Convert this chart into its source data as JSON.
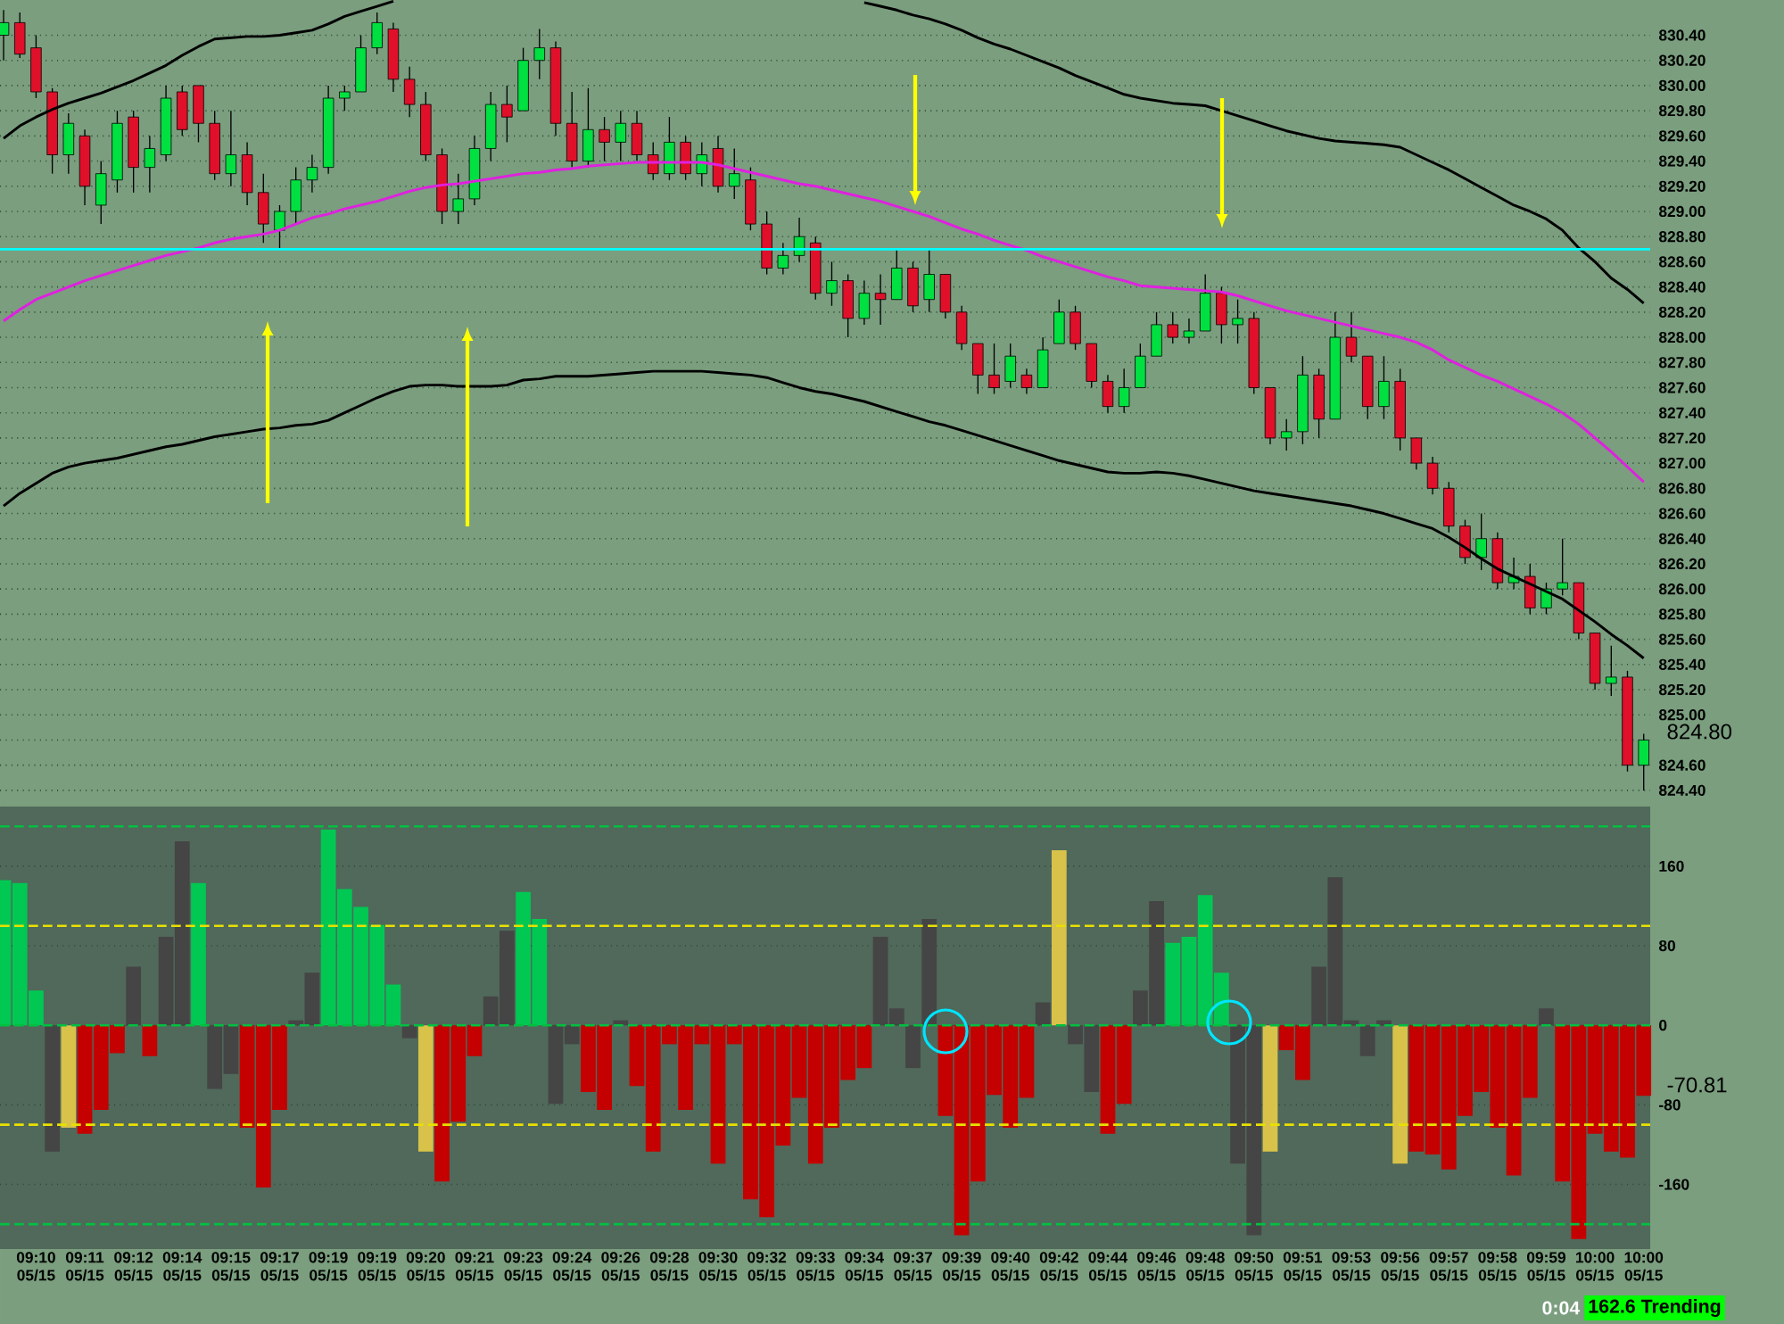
{
  "chart_data": [
    {
      "type": "candlestick",
      "categories": [
        null,
        null,
        null,
        null,
        null,
        null,
        null,
        null,
        null,
        null,
        null,
        null,
        null,
        null,
        null,
        null,
        null,
        null,
        null,
        null,
        null,
        null,
        null,
        null,
        null,
        null,
        null,
        null,
        null,
        null,
        null,
        null,
        null,
        null,
        null,
        null,
        null,
        null,
        null,
        null,
        null,
        null,
        null,
        null,
        null,
        null,
        null,
        null,
        null,
        null,
        null,
        null,
        null,
        null,
        null,
        null,
        null,
        null,
        null,
        null,
        null,
        null,
        null,
        null,
        null,
        null,
        null,
        null,
        null,
        null,
        null,
        null,
        null,
        null,
        null,
        null,
        null,
        null,
        null,
        null,
        null,
        null,
        null,
        null,
        null,
        null,
        null,
        null,
        null,
        null,
        null,
        null,
        null,
        null,
        null,
        null,
        null,
        null,
        null,
        null,
        null,
        null
      ],
      "ohlc": [
        [
          830.4,
          830.6,
          830.2,
          830.5
        ],
        [
          830.5,
          830.58,
          830.22,
          830.25
        ],
        [
          830.3,
          830.4,
          829.9,
          829.95
        ],
        [
          829.95,
          829.98,
          829.3,
          829.45
        ],
        [
          829.45,
          829.78,
          829.3,
          829.7
        ],
        [
          829.6,
          829.65,
          829.05,
          829.2
        ],
        [
          829.05,
          829.4,
          828.9,
          829.3
        ],
        [
          829.25,
          829.8,
          829.15,
          829.7
        ],
        [
          829.75,
          829.8,
          829.15,
          829.35
        ],
        [
          829.35,
          829.6,
          829.15,
          829.5
        ],
        [
          829.45,
          830.0,
          829.4,
          829.9
        ],
        [
          829.95,
          830.0,
          829.6,
          829.65
        ],
        [
          830.0,
          830.0,
          829.55,
          829.7
        ],
        [
          829.7,
          829.8,
          829.25,
          829.3
        ],
        [
          829.3,
          829.8,
          829.2,
          829.45
        ],
        [
          829.45,
          829.55,
          829.05,
          829.15
        ],
        [
          829.15,
          829.3,
          828.75,
          828.9
        ],
        [
          828.85,
          829.05,
          828.7,
          829.0
        ],
        [
          829.0,
          829.35,
          828.9,
          829.25
        ],
        [
          829.25,
          829.45,
          829.15,
          829.35
        ],
        [
          829.35,
          830.0,
          829.3,
          829.9
        ],
        [
          829.9,
          830.0,
          829.8,
          829.95
        ],
        [
          829.95,
          830.4,
          829.95,
          830.3
        ],
        [
          830.3,
          830.58,
          830.25,
          830.5
        ],
        [
          830.45,
          830.5,
          829.95,
          830.05
        ],
        [
          830.05,
          830.15,
          829.75,
          829.85
        ],
        [
          829.85,
          829.95,
          829.4,
          829.45
        ],
        [
          829.45,
          829.5,
          828.9,
          829.0
        ],
        [
          829.0,
          829.3,
          828.9,
          829.1
        ],
        [
          829.1,
          829.6,
          829.05,
          829.5
        ],
        [
          829.5,
          829.95,
          829.4,
          829.85
        ],
        [
          829.85,
          830.0,
          829.55,
          829.75
        ],
        [
          829.8,
          830.3,
          829.8,
          830.2
        ],
        [
          830.2,
          830.45,
          830.05,
          830.3
        ],
        [
          830.3,
          830.35,
          829.6,
          829.7
        ],
        [
          829.7,
          829.95,
          829.35,
          829.4
        ],
        [
          829.4,
          829.98,
          829.35,
          829.65
        ],
        [
          829.65,
          829.75,
          829.4,
          829.55
        ],
        [
          829.55,
          829.8,
          829.4,
          829.7
        ],
        [
          829.7,
          829.8,
          829.4,
          829.45
        ],
        [
          829.45,
          829.55,
          829.25,
          829.3
        ],
        [
          829.3,
          829.75,
          829.25,
          829.55
        ],
        [
          829.55,
          829.6,
          829.25,
          829.3
        ],
        [
          829.3,
          829.55,
          829.2,
          829.45
        ],
        [
          829.5,
          829.6,
          829.15,
          829.2
        ],
        [
          829.2,
          829.5,
          829.1,
          829.3
        ],
        [
          829.25,
          829.35,
          828.85,
          828.9
        ],
        [
          828.9,
          829.0,
          828.5,
          828.55
        ],
        [
          828.55,
          828.75,
          828.5,
          828.65
        ],
        [
          828.65,
          828.95,
          828.6,
          828.8
        ],
        [
          828.75,
          828.8,
          828.3,
          828.35
        ],
        [
          828.35,
          828.6,
          828.25,
          828.45
        ],
        [
          828.45,
          828.5,
          828.0,
          828.15
        ],
        [
          828.15,
          828.45,
          828.1,
          828.35
        ],
        [
          828.35,
          828.5,
          828.1,
          828.3
        ],
        [
          828.3,
          828.7,
          828.3,
          828.55
        ],
        [
          828.55,
          828.6,
          828.2,
          828.25
        ],
        [
          828.3,
          828.7,
          828.2,
          828.5
        ],
        [
          828.5,
          828.5,
          828.15,
          828.2
        ],
        [
          828.2,
          828.25,
          827.9,
          827.95
        ],
        [
          827.95,
          827.95,
          827.55,
          827.7
        ],
        [
          827.7,
          827.95,
          827.55,
          827.6
        ],
        [
          827.65,
          827.95,
          827.6,
          827.85
        ],
        [
          827.7,
          827.75,
          827.55,
          827.6
        ],
        [
          827.6,
          828.0,
          827.6,
          827.9
        ],
        [
          827.95,
          828.3,
          827.95,
          828.2
        ],
        [
          828.2,
          828.25,
          827.9,
          827.95
        ],
        [
          827.95,
          827.95,
          827.6,
          827.65
        ],
        [
          827.65,
          827.7,
          827.4,
          827.45
        ],
        [
          827.45,
          827.75,
          827.4,
          827.6
        ],
        [
          827.6,
          827.95,
          827.6,
          827.85
        ],
        [
          827.85,
          828.2,
          827.85,
          828.1
        ],
        [
          828.1,
          828.2,
          827.95,
          828.0
        ],
        [
          828.0,
          828.15,
          827.95,
          828.05
        ],
        [
          828.05,
          828.5,
          828.05,
          828.35
        ],
        [
          828.35,
          828.4,
          827.95,
          828.1
        ],
        [
          828.1,
          828.3,
          827.95,
          828.15
        ],
        [
          828.15,
          828.2,
          827.55,
          827.6
        ],
        [
          827.6,
          827.6,
          827.15,
          827.2
        ],
        [
          827.2,
          827.35,
          827.1,
          827.25
        ],
        [
          827.25,
          827.85,
          827.15,
          827.7
        ],
        [
          827.7,
          827.75,
          827.2,
          827.35
        ],
        [
          827.35,
          828.2,
          827.35,
          828.0
        ],
        [
          828.0,
          828.2,
          827.8,
          827.85
        ],
        [
          827.85,
          827.85,
          827.35,
          827.45
        ],
        [
          827.45,
          827.85,
          827.35,
          827.65
        ],
        [
          827.65,
          827.75,
          827.1,
          827.2
        ],
        [
          827.2,
          827.2,
          826.95,
          827.0
        ],
        [
          827.0,
          827.05,
          826.75,
          826.8
        ],
        [
          826.8,
          826.85,
          826.45,
          826.5
        ],
        [
          826.5,
          826.55,
          826.2,
          826.25
        ],
        [
          826.25,
          826.6,
          826.15,
          826.4
        ],
        [
          826.4,
          826.45,
          826.0,
          826.05
        ],
        [
          826.05,
          826.25,
          826.0,
          826.1
        ],
        [
          826.1,
          826.2,
          825.8,
          825.85
        ],
        [
          825.85,
          826.05,
          825.8,
          826.0
        ],
        [
          826.0,
          826.4,
          825.95,
          826.05
        ],
        [
          826.05,
          826.05,
          825.6,
          825.65
        ],
        [
          825.65,
          825.65,
          825.2,
          825.25
        ],
        [
          825.25,
          825.55,
          825.15,
          825.3
        ],
        [
          825.3,
          825.35,
          824.55,
          824.6
        ],
        [
          824.6,
          824.85,
          824.4,
          824.8
        ]
      ],
      "colors": [
        "#00e040",
        "#e0102a",
        "#e0102a",
        "#e0102a",
        "#00e040",
        "#e0102a",
        "#00e040",
        "#00e040",
        "#e0102a",
        "#00e040",
        "#00e040",
        "#e0102a",
        "#e0102a",
        "#e0102a",
        "#00e040",
        "#e0102a",
        "#e0102a",
        "#00e040",
        "#00e040",
        "#00e040",
        "#00e040",
        "#00e040",
        "#00e040",
        "#00e040",
        "#e0102a",
        "#e0102a",
        "#e0102a",
        "#e0102a",
        "#00e040",
        "#00e040",
        "#00e040",
        "#e0102a",
        "#00e040",
        "#00e040",
        "#e0102a",
        "#e0102a",
        "#00e040",
        "#e0102a",
        "#00e040",
        "#e0102a",
        "#e0102a",
        "#00e040",
        "#e0102a",
        "#00e040",
        "#e0102a",
        "#00e040",
        "#e0102a",
        "#e0102a",
        "#00e040",
        "#00e040",
        "#e0102a",
        "#00e040",
        "#e0102a",
        "#00e040",
        "#e0102a",
        "#00e040",
        "#e0102a",
        "#00e040",
        "#e0102a",
        "#e0102a",
        "#e0102a",
        "#e0102a",
        "#00e040",
        "#e0102a",
        "#00e040",
        "#00e040",
        "#e0102a",
        "#e0102a",
        "#e0102a",
        "#00e040",
        "#00e040",
        "#00e040",
        "#e0102a",
        "#00e040",
        "#00e040",
        "#e0102a",
        "#00e040",
        "#e0102a",
        "#e0102a",
        "#00e040",
        "#00e040",
        "#e0102a",
        "#00e040",
        "#e0102a",
        "#e0102a",
        "#00e040",
        "#e0102a",
        "#e0102a",
        "#e0102a",
        "#e0102a",
        "#e0102a",
        "#00e040",
        "#e0102a",
        "#00e040",
        "#e0102a",
        "#00e040",
        "#00e040",
        "#e0102a",
        "#e0102a",
        "#00e040",
        "#e0102a",
        "#00e040"
      ],
      "series": [
        {
          "type": "line",
          "color": "#000000",
          "values": [
            829.58,
            829.68,
            829.75,
            829.81,
            829.86,
            829.9,
            829.94,
            829.99,
            830.04,
            830.1,
            830.16,
            830.24,
            830.31,
            830.37,
            830.38,
            830.39,
            830.39,
            830.4,
            830.42,
            830.44,
            830.49,
            830.55,
            830.59,
            830.63,
            830.67,
            null,
            null,
            null,
            null,
            null,
            null,
            null,
            null,
            null,
            null,
            null,
            null,
            null,
            null,
            null,
            null,
            null,
            null,
            null,
            null,
            null,
            null,
            null,
            null,
            null,
            null,
            null,
            null,
            830.66,
            830.63,
            830.6,
            830.56,
            830.53,
            830.49,
            830.44,
            830.38,
            830.33,
            830.29,
            830.24,
            830.19,
            830.14,
            830.08,
            830.03,
            829.98,
            829.93,
            829.9,
            829.88,
            829.86,
            829.85,
            829.84,
            829.8,
            829.76,
            829.72,
            829.68,
            829.64,
            829.61,
            829.58,
            829.56,
            829.55,
            829.54,
            829.53,
            829.51,
            829.45,
            829.39,
            829.33,
            829.26,
            829.19,
            829.12,
            829.05,
            829.0,
            828.94,
            828.85,
            828.71,
            828.6,
            828.47,
            828.38,
            828.27
          ]
        },
        {
          "type": "line",
          "color": "#e020e0",
          "values": [
            828.13,
            828.22,
            828.3,
            828.35,
            828.4,
            828.45,
            828.49,
            828.53,
            828.57,
            828.61,
            828.65,
            828.68,
            828.71,
            828.75,
            828.78,
            828.8,
            828.82,
            828.85,
            828.9,
            828.95,
            828.98,
            829.02,
            829.05,
            829.08,
            829.12,
            829.16,
            829.19,
            829.21,
            829.22,
            829.24,
            829.26,
            829.28,
            829.3,
            829.31,
            829.33,
            829.34,
            829.36,
            829.37,
            829.38,
            829.39,
            829.39,
            829.39,
            829.39,
            829.39,
            829.37,
            829.34,
            829.31,
            829.28,
            829.25,
            829.22,
            829.2,
            829.17,
            829.14,
            829.11,
            829.08,
            829.04,
            829.0,
            828.96,
            828.91,
            828.86,
            828.82,
            828.77,
            828.73,
            828.69,
            828.64,
            828.6,
            828.56,
            828.52,
            828.48,
            828.45,
            828.41,
            828.4,
            828.39,
            828.38,
            828.37,
            828.36,
            828.33,
            828.29,
            828.25,
            828.21,
            828.18,
            828.15,
            828.12,
            828.09,
            828.06,
            828.03,
            828.0,
            827.96,
            827.9,
            827.82,
            827.76,
            827.7,
            827.65,
            827.59,
            827.53,
            827.47,
            827.4,
            827.31,
            827.2,
            827.09,
            826.97,
            826.85
          ]
        },
        {
          "type": "line",
          "color": "#000000",
          "values": [
            826.66,
            826.76,
            826.84,
            826.92,
            826.97,
            827.0,
            827.02,
            827.04,
            827.07,
            827.1,
            827.13,
            827.15,
            827.18,
            827.21,
            827.23,
            827.25,
            827.27,
            827.28,
            827.3,
            827.31,
            827.34,
            827.4,
            827.46,
            827.52,
            827.57,
            827.61,
            827.62,
            827.62,
            827.61,
            827.61,
            827.61,
            827.62,
            827.66,
            827.67,
            827.69,
            827.69,
            827.69,
            827.7,
            827.71,
            827.72,
            827.73,
            827.73,
            827.73,
            827.73,
            827.72,
            827.71,
            827.7,
            827.68,
            827.64,
            827.6,
            827.57,
            827.55,
            827.52,
            827.49,
            827.45,
            827.41,
            827.37,
            827.33,
            827.3,
            827.26,
            827.22,
            827.18,
            827.14,
            827.1,
            827.06,
            827.02,
            826.99,
            826.96,
            826.93,
            826.92,
            826.92,
            826.93,
            826.92,
            826.9,
            826.87,
            826.84,
            826.81,
            826.78,
            826.76,
            826.74,
            826.72,
            826.7,
            826.68,
            826.66,
            826.63,
            826.6,
            826.56,
            826.52,
            826.48,
            826.41,
            826.33,
            826.24,
            826.16,
            826.1,
            826.04,
            825.98,
            825.92,
            825.83,
            825.74,
            825.64,
            825.55,
            825.45
          ]
        }
      ],
      "ylim": [
        824.3,
        830.68
      ],
      "yticks": [
        {
          "value": 824.4,
          "label": "824.40"
        },
        {
          "value": 824.6,
          "label": "824.60"
        },
        {
          "value": 824.8,
          "label": null
        },
        {
          "value": 825.0,
          "label": "825.00"
        },
        {
          "value": 825.2,
          "label": "825.20"
        },
        {
          "value": 825.4,
          "label": "825.40"
        },
        {
          "value": 825.6,
          "label": "825.60"
        },
        {
          "value": 825.8,
          "label": "825.80"
        },
        {
          "value": 826.0,
          "label": "826.00"
        },
        {
          "value": 826.2,
          "label": "826.20"
        },
        {
          "value": 826.4,
          "label": "826.40"
        },
        {
          "value": 826.6,
          "label": "826.60"
        },
        {
          "value": 826.8,
          "label": "826.80"
        },
        {
          "value": 827.0,
          "label": "827.00"
        },
        {
          "value": 827.2,
          "label": "827.20"
        },
        {
          "value": 827.4,
          "label": "827.40"
        },
        {
          "value": 827.6,
          "label": "827.60"
        },
        {
          "value": 827.8,
          "label": "827.80"
        },
        {
          "value": 828.0,
          "label": "828.00"
        },
        {
          "value": 828.2,
          "label": "828.20"
        },
        {
          "value": 828.4,
          "label": "828.40"
        },
        {
          "value": 828.6,
          "label": "828.60"
        },
        {
          "value": 828.8,
          "label": "828.80"
        },
        {
          "value": 829.0,
          "label": "829.00"
        },
        {
          "value": 829.2,
          "label": "829.20"
        },
        {
          "value": 829.4,
          "label": "829.40"
        },
        {
          "value": 829.6,
          "label": "829.60"
        },
        {
          "value": 829.8,
          "label": "829.80"
        },
        {
          "value": 830.0,
          "label": "830.00"
        },
        {
          "value": 830.2,
          "label": "830.20"
        },
        {
          "value": 830.4,
          "label": "830.40"
        }
      ],
      "ref_lines": [
        {
          "axis": "y",
          "value": 828.7,
          "color": "#00ffff",
          "line_style": "solid"
        }
      ],
      "annotations": [
        "824.80"
      ],
      "grid": "y",
      "tick_labels": "y"
    },
    {
      "type": "bar",
      "categories": [
        null,
        null,
        "09:10 05/15",
        null,
        null,
        "09:11 05/15",
        null,
        null,
        "09:12 05/15",
        null,
        null,
        "09:14 05/15",
        null,
        null,
        "09:15 05/15",
        null,
        null,
        "09:17 05/15",
        null,
        null,
        "09:19 05/15",
        null,
        null,
        "09:19 05/15",
        null,
        null,
        "09:20 05/15",
        null,
        null,
        "09:21 05/15",
        null,
        null,
        "09:23 05/15",
        null,
        null,
        "09:24 05/15",
        null,
        null,
        "09:26 05/15",
        null,
        null,
        "09:28 05/15",
        null,
        null,
        "09:30 05/15",
        null,
        null,
        "09:32 05/15",
        null,
        null,
        "09:33 05/15",
        null,
        null,
        "09:34 05/15",
        null,
        null,
        "09:37 05/15",
        null,
        null,
        "09:39 05/15",
        null,
        null,
        "09:40 05/15",
        null,
        null,
        "09:42 05/15",
        null,
        null,
        "09:44 05/15",
        null,
        null,
        "09:46 05/15",
        null,
        null,
        "09:48 05/15",
        null,
        null,
        "09:50 05/15",
        null,
        null,
        "09:51 05/15",
        null,
        null,
        "09:53 05/15",
        null,
        null,
        "09:56 05/15",
        null,
        null,
        "09:57 05/15",
        null,
        null,
        "09:58 05/15",
        null,
        null,
        "09:59 05/15",
        null,
        null,
        "10:00 05/15",
        null,
        null,
        "10:00 05/15"
      ],
      "values": [
        146,
        143,
        35,
        -127,
        -103,
        -109,
        -85,
        -28,
        59,
        -31,
        89,
        185,
        143,
        -64,
        -49,
        -103,
        -163,
        -85,
        5,
        53,
        197,
        137,
        119,
        101,
        41,
        -13,
        -127,
        -157,
        -97,
        -31,
        29,
        95,
        134,
        107,
        -79,
        -19,
        -67,
        -85,
        5,
        -61,
        -127,
        -19,
        -85,
        -19,
        -139,
        -19,
        -175,
        -193,
        -121,
        -73,
        -139,
        -103,
        -55,
        -43,
        89,
        17,
        -43,
        107,
        -91,
        -211,
        -157,
        -70,
        -103,
        -73,
        23,
        176,
        -19,
        -67,
        -109,
        -79,
        35,
        125,
        83,
        89,
        131,
        53,
        -139,
        -211,
        -127,
        -25,
        -55,
        59,
        149,
        5,
        -31,
        5,
        -139,
        -127,
        -130,
        -145,
        -91,
        -67,
        -103,
        -151,
        -73,
        17,
        -157,
        -215,
        -109,
        -127,
        -133,
        -71
      ],
      "colors": [
        "#00c853",
        "#00c853",
        "#00c853",
        "#454545",
        "#d8c24a",
        "#c40000",
        "#c40000",
        "#c40000",
        "#454545",
        "#c40000",
        "#454545",
        "#454545",
        "#00c853",
        "#454545",
        "#454545",
        "#c40000",
        "#c40000",
        "#c40000",
        "#454545",
        "#454545",
        "#00c853",
        "#00c853",
        "#00c853",
        "#00c853",
        "#00c853",
        "#454545",
        "#d8c24a",
        "#c40000",
        "#c40000",
        "#c40000",
        "#454545",
        "#454545",
        "#00c853",
        "#00c853",
        "#454545",
        "#454545",
        "#c40000",
        "#c40000",
        "#454545",
        "#c40000",
        "#c40000",
        "#c40000",
        "#c40000",
        "#c40000",
        "#c40000",
        "#c40000",
        "#c40000",
        "#c40000",
        "#c40000",
        "#c40000",
        "#c40000",
        "#c40000",
        "#c40000",
        "#c40000",
        "#454545",
        "#454545",
        "#454545",
        "#454545",
        "#c40000",
        "#c40000",
        "#c40000",
        "#c40000",
        "#c40000",
        "#c40000",
        "#454545",
        "#d8c24a",
        "#454545",
        "#454545",
        "#c40000",
        "#c40000",
        "#454545",
        "#454545",
        "#00c853",
        "#00c853",
        "#00c853",
        "#00c853",
        "#454545",
        "#454545",
        "#d8c24a",
        "#c40000",
        "#c40000",
        "#454545",
        "#454545",
        "#454545",
        "#454545",
        "#454545",
        "#d8c24a",
        "#c40000",
        "#c40000",
        "#c40000",
        "#c40000",
        "#c40000",
        "#c40000",
        "#c40000",
        "#c40000",
        "#454545",
        "#c40000",
        "#c40000",
        "#c40000",
        "#c40000",
        "#c40000",
        "#c40000"
      ],
      "ylim": [
        -225,
        220
      ],
      "yticks": [
        160,
        80,
        0,
        -80,
        -160
      ],
      "ref_lines": [
        {
          "axis": "y",
          "value": 200,
          "color": "#00c040",
          "line_style": "dashed"
        },
        {
          "axis": "y",
          "value": 100,
          "color": "#e8e000",
          "line_style": "dashed"
        },
        {
          "axis": "y",
          "value": 0,
          "color": "#00c040",
          "line_style": "dashed"
        },
        {
          "axis": "y",
          "value": -100,
          "color": "#e8e000",
          "line_style": "dashed"
        },
        {
          "axis": "y",
          "value": -200,
          "color": "#00c040",
          "line_style": "dashed"
        }
      ],
      "annotations": [
        "-70.81",
        "0:04",
        "162.6 Trending"
      ],
      "grid": "y"
    }
  ]
}
